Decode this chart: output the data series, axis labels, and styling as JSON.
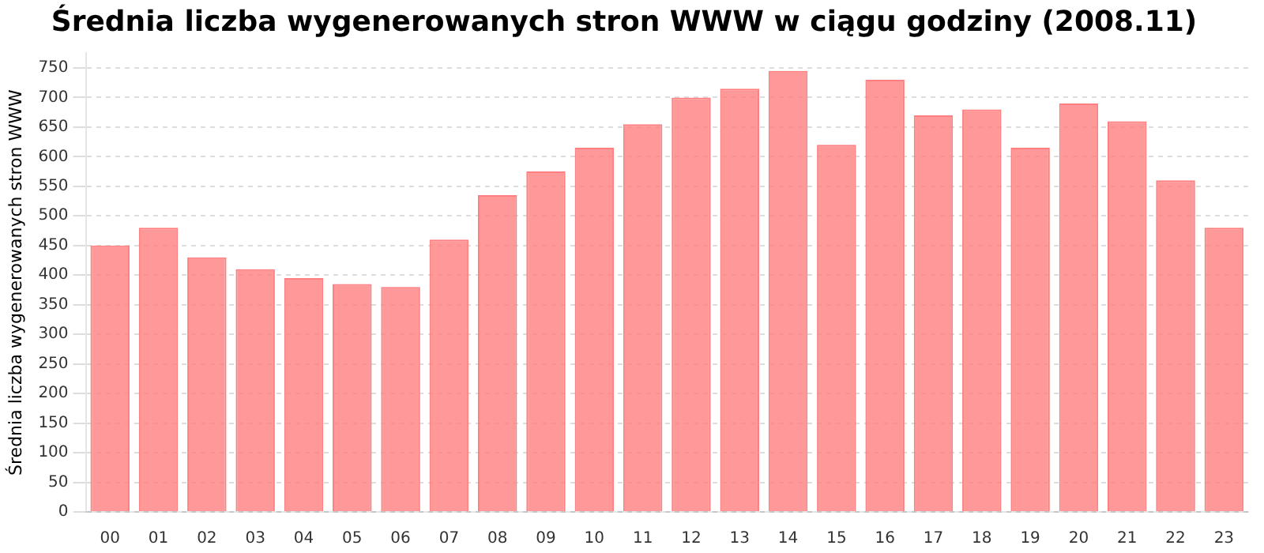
{
  "chart_data": {
    "type": "bar",
    "title": "Średnia liczba wygenerowanych stron WWW w ciągu godziny (2008.11)",
    "ylabel": "Średnia liczba wygenerowanych stron WWW",
    "categories": [
      "00",
      "01",
      "02",
      "03",
      "04",
      "05",
      "06",
      "07",
      "08",
      "09",
      "10",
      "11",
      "12",
      "13",
      "14",
      "15",
      "16",
      "17",
      "18",
      "19",
      "20",
      "21",
      "22",
      "23"
    ],
    "values": [
      450,
      480,
      430,
      410,
      395,
      385,
      380,
      460,
      535,
      575,
      615,
      655,
      700,
      715,
      745,
      620,
      730,
      670,
      680,
      615,
      690,
      660,
      560,
      480
    ],
    "color": "#ff8080",
    "ylim": [
      0,
      775
    ],
    "yticks": [
      0,
      50,
      100,
      150,
      200,
      250,
      300,
      350,
      400,
      450,
      500,
      550,
      600,
      650,
      700,
      750
    ],
    "grid": "y",
    "legend": false
  }
}
